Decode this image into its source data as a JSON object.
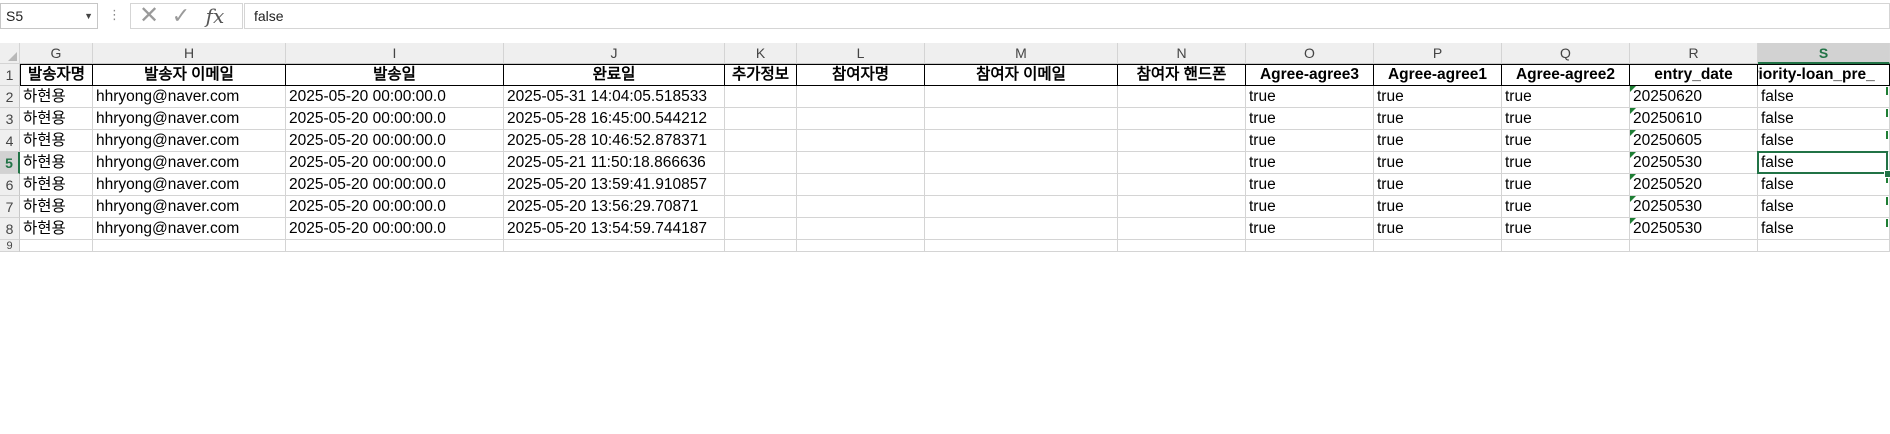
{
  "namebox": {
    "value": "S5"
  },
  "formula_bar": {
    "value": "false",
    "fx_label": "fx"
  },
  "columns": [
    {
      "letter": "G",
      "header": "발송자명"
    },
    {
      "letter": "H",
      "header": "발송자 이메일"
    },
    {
      "letter": "I",
      "header": "발송일"
    },
    {
      "letter": "J",
      "header": "완료일"
    },
    {
      "letter": "K",
      "header": "추가정보"
    },
    {
      "letter": "L",
      "header": "참여자명"
    },
    {
      "letter": "M",
      "header": "참여자 이메일"
    },
    {
      "letter": "N",
      "header": "참여자 핸드폰"
    },
    {
      "letter": "O",
      "header": "Agree-agree3"
    },
    {
      "letter": "P",
      "header": "Agree-agree1"
    },
    {
      "letter": "Q",
      "header": "Agree-agree2"
    },
    {
      "letter": "R",
      "header": "entry_date"
    },
    {
      "letter": "S",
      "header": "priority-loan_pre_"
    }
  ],
  "rows": [
    [
      "하현용",
      "hhryong@naver.com",
      "2025-05-20 00:00:00.0",
      "2025-05-31 14:04:05.518533",
      "",
      "",
      "",
      "",
      "true",
      "true",
      "true",
      "20250620",
      "false"
    ],
    [
      "하현용",
      "hhryong@naver.com",
      "2025-05-20 00:00:00.0",
      "2025-05-28 16:45:00.544212",
      "",
      "",
      "",
      "",
      "true",
      "true",
      "true",
      "20250610",
      "false"
    ],
    [
      "하현용",
      "hhryong@naver.com",
      "2025-05-20 00:00:00.0",
      "2025-05-28 10:46:52.878371",
      "",
      "",
      "",
      "",
      "true",
      "true",
      "true",
      "20250605",
      "false"
    ],
    [
      "하현용",
      "hhryong@naver.com",
      "2025-05-20 00:00:00.0",
      "2025-05-21 11:50:18.866636",
      "",
      "",
      "",
      "",
      "true",
      "true",
      "true",
      "20250530",
      "false"
    ],
    [
      "하현용",
      "hhryong@naver.com",
      "2025-05-20 00:00:00.0",
      "2025-05-20 13:59:41.910857",
      "",
      "",
      "",
      "",
      "true",
      "true",
      "true",
      "20250520",
      "false"
    ],
    [
      "하현용",
      "hhryong@naver.com",
      "2025-05-20 00:00:00.0",
      "2025-05-20 13:56:29.70871",
      "",
      "",
      "",
      "",
      "true",
      "true",
      "true",
      "20250530",
      "false"
    ],
    [
      "하현용",
      "hhryong@naver.com",
      "2025-05-20 00:00:00.0",
      "2025-05-20 13:54:59.744187",
      "",
      "",
      "",
      "",
      "true",
      "true",
      "true",
      "20250530",
      "false"
    ]
  ],
  "row_numbers": [
    "1",
    "2",
    "3",
    "4",
    "5",
    "6",
    "7",
    "8",
    "9"
  ],
  "selected_cell": {
    "column": "S",
    "row": "5"
  },
  "accent_color": "#217346"
}
